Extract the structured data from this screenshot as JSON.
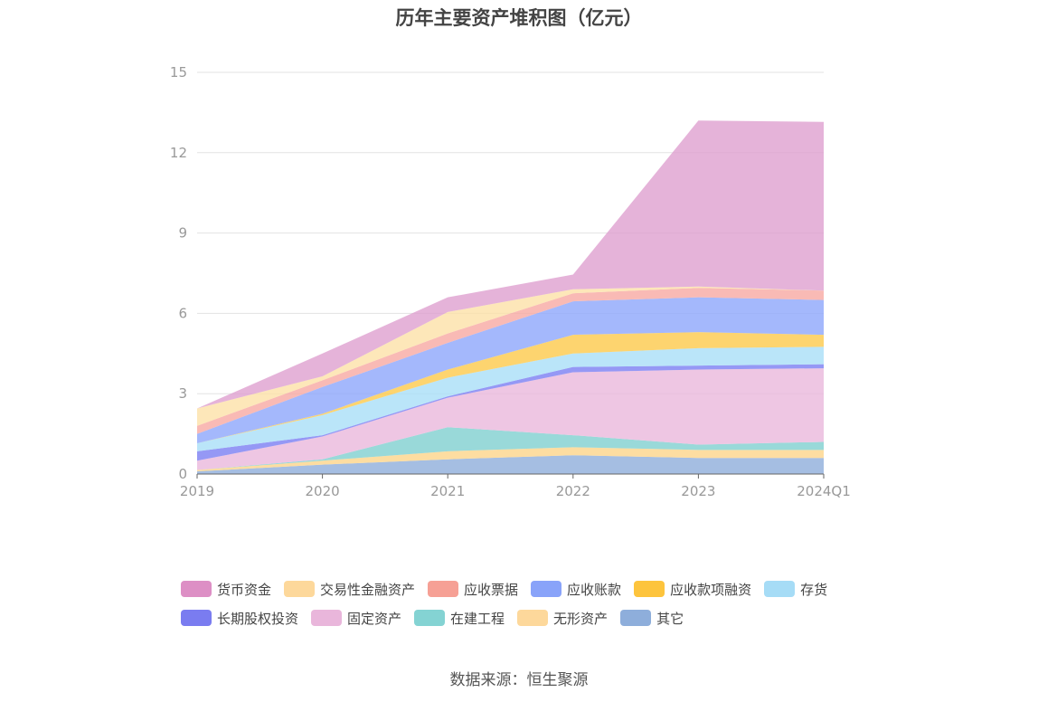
{
  "chart_data": {
    "type": "area",
    "stacked": true,
    "title": "历年主要资产堆积图（亿元）",
    "categories": [
      "2019",
      "2020",
      "2021",
      "2022",
      "2023",
      "2024Q1"
    ],
    "ylim": [
      0,
      15
    ],
    "yticks": [
      0,
      3,
      6,
      9,
      12,
      15
    ],
    "series": [
      {
        "name": "其它",
        "color": "#8eaedb",
        "values": [
          0.1,
          0.35,
          0.55,
          0.7,
          0.6,
          0.6
        ]
      },
      {
        "name": "无形资产",
        "color": "#fdd58a",
        "values": [
          0.05,
          0.15,
          0.3,
          0.3,
          0.3,
          0.3
        ]
      },
      {
        "name": "在建工程",
        "color": "#7fd0d0",
        "values": [
          0.0,
          0.05,
          0.9,
          0.45,
          0.2,
          0.3
        ]
      },
      {
        "name": "固定资产",
        "color": "#eab8dc",
        "values": [
          0.35,
          0.85,
          1.1,
          2.35,
          2.8,
          2.75
        ]
      },
      {
        "name": "长期股权投资",
        "color": "#7b7ef2",
        "values": [
          0.35,
          0.05,
          0.05,
          0.2,
          0.15,
          0.15
        ]
      },
      {
        "name": "存货",
        "color": "#a9def7",
        "values": [
          0.3,
          0.75,
          0.7,
          0.5,
          0.65,
          0.65
        ]
      },
      {
        "name": "应收款项融资",
        "color": "#fdc94b",
        "values": [
          0.0,
          0.05,
          0.3,
          0.7,
          0.6,
          0.45
        ]
      },
      {
        "name": "应收账款",
        "color": "#8da6fb",
        "values": [
          0.35,
          1.0,
          1.0,
          1.25,
          1.3,
          1.3
        ]
      },
      {
        "name": "应收票据",
        "color": "#f8a9a2",
        "values": [
          0.3,
          0.25,
          0.35,
          0.3,
          0.35,
          0.35
        ]
      },
      {
        "name": "交易性金融资产",
        "color": "#fde1a7",
        "values": [
          0.65,
          0.15,
          0.8,
          0.15,
          0.05,
          0.0
        ]
      },
      {
        "name": "货币资金",
        "color": "#dfa0cf",
        "values": [
          0.0,
          0.85,
          0.55,
          0.55,
          6.2,
          6.3
        ]
      }
    ]
  },
  "legend": {
    "row1": [
      {
        "label": "货币资金",
        "color": "#dd8fc5"
      },
      {
        "label": "交易性金融资产",
        "color": "#fdd89b"
      },
      {
        "label": "应收票据",
        "color": "#f6a095"
      },
      {
        "label": "应收账款",
        "color": "#89a3f9"
      },
      {
        "label": "应收款项融资",
        "color": "#fdc43d"
      },
      {
        "label": "存货",
        "color": "#a6dcf6"
      }
    ],
    "row2": [
      {
        "label": "长期股权投资",
        "color": "#7a7cf0"
      },
      {
        "label": "固定资产",
        "color": "#e9b6db"
      },
      {
        "label": "在建工程",
        "color": "#84d3d3"
      },
      {
        "label": "无形资产",
        "color": "#fdd89b"
      },
      {
        "label": "其它",
        "color": "#8eaedb"
      }
    ]
  },
  "source": "数据来源：恒生聚源"
}
